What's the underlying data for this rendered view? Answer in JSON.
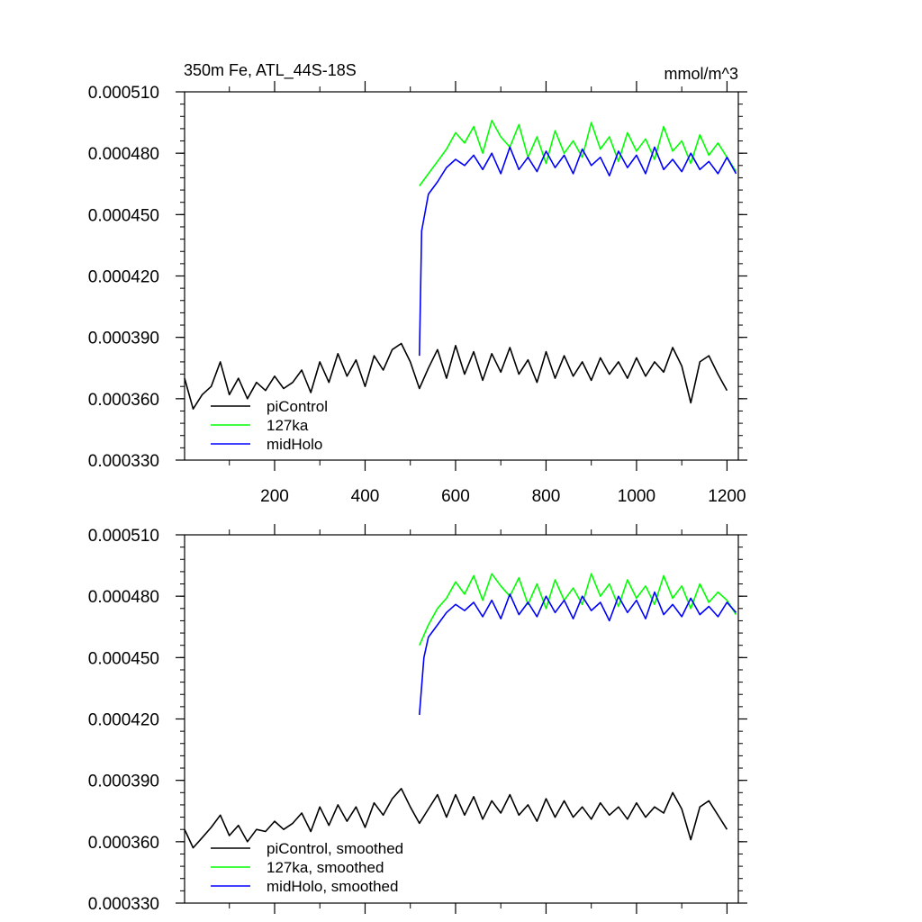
{
  "chart_data": [
    {
      "type": "line",
      "title": "350m Fe, ATL_44S-18S",
      "units": "mmol/m^3",
      "xlim": [
        1,
        1225
      ],
      "ylim": [
        0.00033,
        0.00051
      ],
      "xticks": [
        200,
        400,
        600,
        800,
        1000,
        1200
      ],
      "xtick_labels": [
        "200",
        "400",
        "600",
        "800",
        "1000",
        "1200"
      ],
      "yticks": [
        0.00033,
        0.00036,
        0.00039,
        0.00042,
        0.00045,
        0.00048,
        0.00051
      ],
      "ytick_labels": [
        "0.000330",
        "0.000360",
        "0.000390",
        "0.000420",
        "0.000450",
        "0.000480",
        "0.000510"
      ],
      "legend_position": "bottom-left",
      "series": [
        {
          "name": "piControl",
          "color": "#000000",
          "x": [
            1,
            20,
            40,
            60,
            80,
            100,
            120,
            140,
            160,
            180,
            200,
            220,
            240,
            260,
            280,
            300,
            320,
            340,
            360,
            380,
            400,
            420,
            440,
            460,
            480,
            500,
            520,
            540,
            560,
            580,
            600,
            620,
            640,
            660,
            680,
            700,
            720,
            740,
            760,
            780,
            800,
            820,
            840,
            860,
            880,
            900,
            920,
            940,
            960,
            980,
            1000,
            1020,
            1040,
            1060,
            1080,
            1100,
            1120,
            1140,
            1160,
            1180,
            1200
          ],
          "y": [
            0.00037,
            0.000355,
            0.000362,
            0.000366,
            0.000378,
            0.000362,
            0.00037,
            0.00036,
            0.000368,
            0.000364,
            0.000371,
            0.000365,
            0.000368,
            0.000374,
            0.000363,
            0.000378,
            0.000368,
            0.000382,
            0.000371,
            0.000379,
            0.000366,
            0.000381,
            0.000374,
            0.000384,
            0.000387,
            0.000378,
            0.000365,
            0.000375,
            0.000384,
            0.00037,
            0.000386,
            0.000372,
            0.000383,
            0.000369,
            0.000382,
            0.000373,
            0.000385,
            0.000372,
            0.000379,
            0.000368,
            0.000383,
            0.00037,
            0.000381,
            0.000371,
            0.000378,
            0.000369,
            0.00038,
            0.000372,
            0.000378,
            0.00037,
            0.00038,
            0.000371,
            0.000378,
            0.000373,
            0.000385,
            0.000376,
            0.000358,
            0.000378,
            0.000381,
            0.000372,
            0.000364
          ]
        },
        {
          "name": "127ka",
          "color": "#00ff00",
          "x": [
            520,
            540,
            560,
            580,
            600,
            620,
            640,
            660,
            680,
            700,
            720,
            740,
            760,
            780,
            800,
            820,
            840,
            860,
            880,
            900,
            920,
            940,
            960,
            980,
            1000,
            1020,
            1040,
            1060,
            1080,
            1100,
            1120,
            1140,
            1160,
            1180,
            1200,
            1220
          ],
          "y": [
            0.000464,
            0.00047,
            0.000476,
            0.000482,
            0.00049,
            0.000485,
            0.000493,
            0.00048,
            0.000496,
            0.000488,
            0.000483,
            0.000494,
            0.000478,
            0.000488,
            0.000475,
            0.000491,
            0.00048,
            0.000486,
            0.000478,
            0.000495,
            0.000482,
            0.000488,
            0.000476,
            0.00049,
            0.000481,
            0.000487,
            0.000477,
            0.000493,
            0.000481,
            0.000486,
            0.000475,
            0.000489,
            0.000479,
            0.000485,
            0.000478,
            0.000471
          ]
        },
        {
          "name": "midHolo",
          "color": "#0000ff",
          "x": [
            520,
            525,
            540,
            560,
            580,
            600,
            620,
            640,
            660,
            680,
            700,
            720,
            740,
            760,
            780,
            800,
            820,
            840,
            860,
            880,
            900,
            920,
            940,
            960,
            980,
            1000,
            1020,
            1040,
            1060,
            1080,
            1100,
            1120,
            1140,
            1160,
            1180,
            1200,
            1220
          ],
          "y": [
            0.000381,
            0.000442,
            0.00046,
            0.000466,
            0.000473,
            0.000477,
            0.000474,
            0.000479,
            0.000472,
            0.00048,
            0.00047,
            0.000483,
            0.000472,
            0.000478,
            0.000471,
            0.000481,
            0.000473,
            0.000479,
            0.00047,
            0.000482,
            0.000474,
            0.000478,
            0.000469,
            0.000481,
            0.000473,
            0.000479,
            0.00047,
            0.000483,
            0.000472,
            0.000477,
            0.000471,
            0.00048,
            0.000472,
            0.000476,
            0.00047,
            0.000478,
            0.00047
          ]
        }
      ]
    },
    {
      "type": "line",
      "xlim": [
        1,
        1225
      ],
      "ylim": [
        0.00033,
        0.00051
      ],
      "xticks": [
        200,
        400,
        600,
        800,
        1000,
        1200
      ],
      "yticks": [
        0.00033,
        0.00036,
        0.00039,
        0.00042,
        0.00045,
        0.00048,
        0.00051
      ],
      "ytick_labels": [
        "0.000330",
        "0.000360",
        "0.000390",
        "0.000420",
        "0.000450",
        "0.000480",
        "0.000510"
      ],
      "legend_position": "bottom-left",
      "series": [
        {
          "name": "piControl, smoothed",
          "color": "#000000",
          "x": [
            1,
            20,
            40,
            60,
            80,
            100,
            120,
            140,
            160,
            180,
            200,
            220,
            240,
            260,
            280,
            300,
            320,
            340,
            360,
            380,
            400,
            420,
            440,
            460,
            480,
            500,
            520,
            540,
            560,
            580,
            600,
            620,
            640,
            660,
            680,
            700,
            720,
            740,
            760,
            780,
            800,
            820,
            840,
            860,
            880,
            900,
            920,
            940,
            960,
            980,
            1000,
            1020,
            1040,
            1060,
            1080,
            1100,
            1120,
            1140,
            1160,
            1180,
            1200
          ],
          "y": [
            0.000366,
            0.000357,
            0.000362,
            0.000367,
            0.000373,
            0.000363,
            0.000368,
            0.00036,
            0.000366,
            0.000365,
            0.00037,
            0.000366,
            0.000369,
            0.000374,
            0.000365,
            0.000377,
            0.000368,
            0.000378,
            0.00037,
            0.000377,
            0.000367,
            0.000379,
            0.000373,
            0.000381,
            0.000386,
            0.000377,
            0.000369,
            0.000376,
            0.000383,
            0.000372,
            0.000383,
            0.000373,
            0.000382,
            0.000371,
            0.00038,
            0.000374,
            0.000383,
            0.000373,
            0.000378,
            0.00037,
            0.000381,
            0.000372,
            0.00038,
            0.000372,
            0.000377,
            0.000371,
            0.000379,
            0.000373,
            0.000377,
            0.000371,
            0.000379,
            0.000372,
            0.000377,
            0.000374,
            0.000384,
            0.000376,
            0.000361,
            0.000377,
            0.00038,
            0.000373,
            0.000366
          ]
        },
        {
          "name": "127ka, smoothed",
          "color": "#00ff00",
          "x": [
            520,
            540,
            560,
            580,
            600,
            620,
            640,
            660,
            680,
            700,
            720,
            740,
            760,
            780,
            800,
            820,
            840,
            860,
            880,
            900,
            920,
            940,
            960,
            980,
            1000,
            1020,
            1040,
            1060,
            1080,
            1100,
            1120,
            1140,
            1160,
            1180,
            1200,
            1220
          ],
          "y": [
            0.000456,
            0.000466,
            0.000474,
            0.000479,
            0.000487,
            0.000481,
            0.00049,
            0.000478,
            0.000491,
            0.000485,
            0.00048,
            0.000489,
            0.000476,
            0.000486,
            0.000474,
            0.000488,
            0.000478,
            0.000484,
            0.000476,
            0.000491,
            0.00048,
            0.000486,
            0.000475,
            0.000488,
            0.000479,
            0.000485,
            0.000476,
            0.00049,
            0.000479,
            0.000485,
            0.000474,
            0.000486,
            0.000477,
            0.000482,
            0.000478,
            0.000471
          ]
        },
        {
          "name": "midHolo, smoothed",
          "color": "#0000ff",
          "x": [
            520,
            530,
            540,
            560,
            580,
            600,
            620,
            640,
            660,
            680,
            700,
            720,
            740,
            760,
            780,
            800,
            820,
            840,
            860,
            880,
            900,
            920,
            940,
            960,
            980,
            1000,
            1020,
            1040,
            1060,
            1080,
            1100,
            1120,
            1140,
            1160,
            1180,
            1200,
            1220
          ],
          "y": [
            0.000422,
            0.00045,
            0.00046,
            0.000466,
            0.000472,
            0.000476,
            0.000473,
            0.000477,
            0.00047,
            0.000478,
            0.000469,
            0.000481,
            0.000471,
            0.000477,
            0.00047,
            0.00048,
            0.000472,
            0.000478,
            0.000469,
            0.00048,
            0.000473,
            0.000477,
            0.000468,
            0.00048,
            0.000472,
            0.000478,
            0.000469,
            0.000482,
            0.000471,
            0.000476,
            0.00047,
            0.000479,
            0.000471,
            0.000475,
            0.00047,
            0.000477,
            0.000472
          ]
        }
      ]
    }
  ]
}
